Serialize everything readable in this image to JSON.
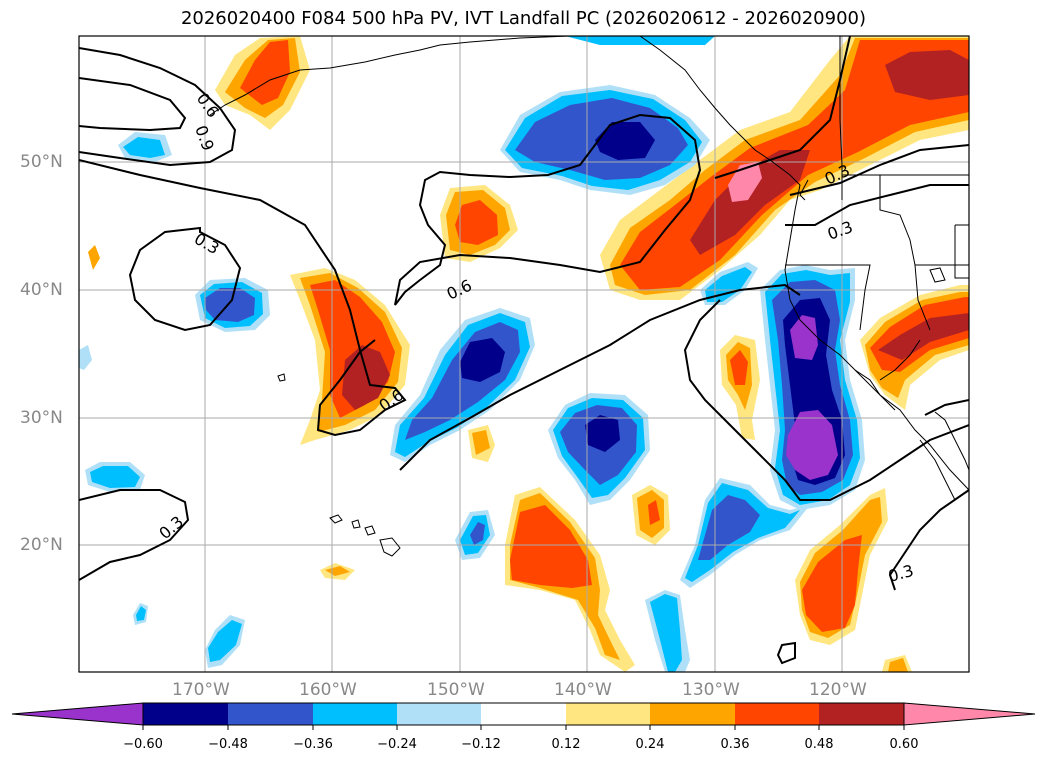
{
  "title": "2026020400 F084 500 hPa PV, IVT Landfall PC (2026020612 - 2026020900)",
  "lat_labels": [
    "50°N",
    "40°N",
    "30°N",
    "20°N"
  ],
  "lon_labels": [
    "170°W",
    "160°W",
    "150°W",
    "140°W",
    "130°W",
    "120°W"
  ],
  "contour_labels": [
    "0.6",
    "0.9",
    "0.3",
    "0.6",
    "0.6",
    "0.3",
    "0.3",
    "0.3",
    "0.3"
  ],
  "colorbar": {
    "ticks": [
      "−0.60",
      "−0.48",
      "−0.36",
      "−0.24",
      "−0.12",
      "0.12",
      "0.24",
      "0.36",
      "0.48",
      "0.60"
    ],
    "colors": [
      "#9933cc",
      "#00008b",
      "#3355cc",
      "#00bfff",
      "#b0e0f8",
      "#ffffff",
      "#ffe680",
      "#ffa500",
      "#ff4500",
      "#b22222",
      "#ff88aa"
    ]
  }
}
